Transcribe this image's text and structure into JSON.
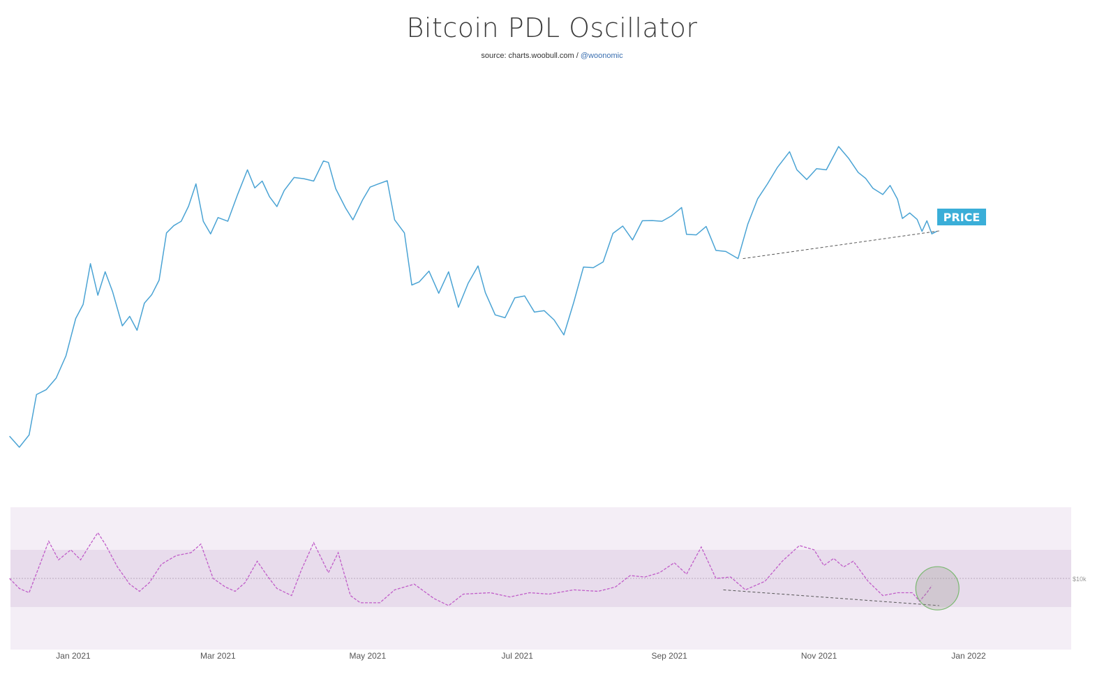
{
  "title": "Bitcoin PDL Oscillator",
  "subtitle": {
    "source": "source: charts.woobull.com / ",
    "handle": "@woonomic"
  },
  "colors": {
    "price": "#4aa3d4",
    "oscillator": "#c05cc8",
    "band_outer": "#f4eef6",
    "band_inner": "#e8dcec",
    "badge": "#3aaed8",
    "circle": "#7ab870"
  },
  "chart_data": {
    "type": "line",
    "price_badge": "PRICE",
    "right_axis_label": "$10k",
    "x_axis": {
      "ticks": [
        "Jan 2021",
        "Mar 2021",
        "May 2021",
        "Jul 2021",
        "Sep 2021",
        "Nov 2021",
        "Jan 2022"
      ],
      "range": [
        "2020-12-06",
        "2022-01-31"
      ]
    },
    "series": [
      {
        "key": "price",
        "points": [
          [
            "2020-12-06",
            19200
          ],
          [
            "2020-12-10",
            18300
          ],
          [
            "2020-12-14",
            19300
          ],
          [
            "2020-12-17",
            23000
          ],
          [
            "2020-12-21",
            23500
          ],
          [
            "2020-12-25",
            24700
          ],
          [
            "2020-12-29",
            27200
          ],
          [
            "2021-01-02",
            32000
          ],
          [
            "2021-01-05",
            34000
          ],
          [
            "2021-01-08",
            40600
          ],
          [
            "2021-01-11",
            35400
          ],
          [
            "2021-01-14",
            39200
          ],
          [
            "2021-01-17",
            36000
          ],
          [
            "2021-01-21",
            31000
          ],
          [
            "2021-01-24",
            32300
          ],
          [
            "2021-01-27",
            30400
          ],
          [
            "2021-01-30",
            34200
          ],
          [
            "2021-02-02",
            35500
          ],
          [
            "2021-02-05",
            37800
          ],
          [
            "2021-02-08",
            46400
          ],
          [
            "2021-02-11",
            47900
          ],
          [
            "2021-02-14",
            48800
          ],
          [
            "2021-02-17",
            52100
          ],
          [
            "2021-02-20",
            57400
          ],
          [
            "2021-02-23",
            48800
          ],
          [
            "2021-02-26",
            46200
          ],
          [
            "2021-03-01",
            49600
          ],
          [
            "2021-03-05",
            48800
          ],
          [
            "2021-03-09",
            54800
          ],
          [
            "2021-03-13",
            61000
          ],
          [
            "2021-03-16",
            56400
          ],
          [
            "2021-03-19",
            58100
          ],
          [
            "2021-03-22",
            54300
          ],
          [
            "2021-03-25",
            52000
          ],
          [
            "2021-03-28",
            55800
          ],
          [
            "2021-04-01",
            59000
          ],
          [
            "2021-04-05",
            58700
          ],
          [
            "2021-04-09",
            58100
          ],
          [
            "2021-04-13",
            63400
          ],
          [
            "2021-04-15",
            63000
          ],
          [
            "2021-04-18",
            56200
          ],
          [
            "2021-04-22",
            51700
          ],
          [
            "2021-04-25",
            49100
          ],
          [
            "2021-04-29",
            53600
          ],
          [
            "2021-05-02",
            56600
          ],
          [
            "2021-05-05",
            57300
          ],
          [
            "2021-05-09",
            58200
          ],
          [
            "2021-05-12",
            49100
          ],
          [
            "2021-05-16",
            46400
          ],
          [
            "2021-05-19",
            37000
          ],
          [
            "2021-05-22",
            37500
          ],
          [
            "2021-05-26",
            39300
          ],
          [
            "2021-05-30",
            35700
          ],
          [
            "2021-06-03",
            39200
          ],
          [
            "2021-06-07",
            33600
          ],
          [
            "2021-06-11",
            37300
          ],
          [
            "2021-06-15",
            40200
          ],
          [
            "2021-06-18",
            35800
          ],
          [
            "2021-06-22",
            32500
          ],
          [
            "2021-06-26",
            32100
          ],
          [
            "2021-06-30",
            35000
          ],
          [
            "2021-07-04",
            35300
          ],
          [
            "2021-07-08",
            32900
          ],
          [
            "2021-07-12",
            33100
          ],
          [
            "2021-07-16",
            31800
          ],
          [
            "2021-07-20",
            29800
          ],
          [
            "2021-07-24",
            34300
          ],
          [
            "2021-07-28",
            40000
          ],
          [
            "2021-08-01",
            39900
          ],
          [
            "2021-08-05",
            40900
          ],
          [
            "2021-08-09",
            46300
          ],
          [
            "2021-08-13",
            47800
          ],
          [
            "2021-08-17",
            45000
          ],
          [
            "2021-08-21",
            48900
          ],
          [
            "2021-08-25",
            48950
          ],
          [
            "2021-08-29",
            48800
          ],
          [
            "2021-09-02",
            50000
          ],
          [
            "2021-09-06",
            51800
          ],
          [
            "2021-09-08",
            46100
          ],
          [
            "2021-09-12",
            46000
          ],
          [
            "2021-09-16",
            47700
          ],
          [
            "2021-09-20",
            43000
          ],
          [
            "2021-09-24",
            42800
          ],
          [
            "2021-09-29",
            41500
          ],
          [
            "2021-10-03",
            48200
          ],
          [
            "2021-10-07",
            53800
          ],
          [
            "2021-10-11",
            57400
          ],
          [
            "2021-10-15",
            61600
          ],
          [
            "2021-10-20",
            66000
          ],
          [
            "2021-10-23",
            61000
          ],
          [
            "2021-10-27",
            58500
          ],
          [
            "2021-10-31",
            61300
          ],
          [
            "2021-11-04",
            61000
          ],
          [
            "2021-11-09",
            67500
          ],
          [
            "2021-11-13",
            64200
          ],
          [
            "2021-11-17",
            60300
          ],
          [
            "2021-11-20",
            58800
          ],
          [
            "2021-11-23",
            56300
          ],
          [
            "2021-11-27",
            54800
          ],
          [
            "2021-11-30",
            57000
          ],
          [
            "2021-12-03",
            53700
          ],
          [
            "2021-12-05",
            49400
          ],
          [
            "2021-12-08",
            50600
          ],
          [
            "2021-12-11",
            49200
          ],
          [
            "2021-12-13",
            46700
          ],
          [
            "2021-12-15",
            48900
          ],
          [
            "2021-12-17",
            46200
          ],
          [
            "2021-12-19",
            46700
          ]
        ]
      },
      {
        "key": "oscillator",
        "points": [
          [
            "2020-12-06",
            0.0
          ],
          [
            "2020-12-10",
            -0.35
          ],
          [
            "2020-12-14",
            -0.5
          ],
          [
            "2020-12-18",
            0.4
          ],
          [
            "2020-12-22",
            1.3
          ],
          [
            "2020-12-26",
            0.65
          ],
          [
            "2020-12-31",
            1.0
          ],
          [
            "2021-01-04",
            0.65
          ],
          [
            "2021-01-08",
            1.2
          ],
          [
            "2021-01-11",
            1.6
          ],
          [
            "2021-01-14",
            1.2
          ],
          [
            "2021-01-19",
            0.4
          ],
          [
            "2021-01-24",
            -0.2
          ],
          [
            "2021-01-28",
            -0.45
          ],
          [
            "2021-02-01",
            -0.15
          ],
          [
            "2021-02-06",
            0.5
          ],
          [
            "2021-02-12",
            0.8
          ],
          [
            "2021-02-18",
            0.9
          ],
          [
            "2021-02-22",
            1.2
          ],
          [
            "2021-02-27",
            0.0
          ],
          [
            "2021-03-04",
            -0.3
          ],
          [
            "2021-03-08",
            -0.45
          ],
          [
            "2021-03-12",
            -0.15
          ],
          [
            "2021-03-17",
            0.6
          ],
          [
            "2021-03-21",
            0.1
          ],
          [
            "2021-03-25",
            -0.35
          ],
          [
            "2021-03-31",
            -0.6
          ],
          [
            "2021-04-04",
            0.3
          ],
          [
            "2021-04-09",
            1.25
          ],
          [
            "2021-04-15",
            0.2
          ],
          [
            "2021-04-19",
            0.9
          ],
          [
            "2021-04-24",
            -0.6
          ],
          [
            "2021-04-28",
            -0.85
          ],
          [
            "2021-05-06",
            -0.85
          ],
          [
            "2021-05-12",
            -0.4
          ],
          [
            "2021-05-20",
            -0.2
          ],
          [
            "2021-05-28",
            -0.7
          ],
          [
            "2021-06-03",
            -0.95
          ],
          [
            "2021-06-09",
            -0.55
          ],
          [
            "2021-06-20",
            -0.5
          ],
          [
            "2021-06-28",
            -0.65
          ],
          [
            "2021-07-06",
            -0.5
          ],
          [
            "2021-07-14",
            -0.55
          ],
          [
            "2021-07-24",
            -0.4
          ],
          [
            "2021-08-03",
            -0.45
          ],
          [
            "2021-08-10",
            -0.3
          ],
          [
            "2021-08-16",
            0.1
          ],
          [
            "2021-08-22",
            0.05
          ],
          [
            "2021-08-28",
            0.2
          ],
          [
            "2021-09-03",
            0.55
          ],
          [
            "2021-09-08",
            0.15
          ],
          [
            "2021-09-14",
            1.1
          ],
          [
            "2021-09-20",
            0.0
          ],
          [
            "2021-09-26",
            0.05
          ],
          [
            "2021-10-02",
            -0.4
          ],
          [
            "2021-10-10",
            -0.1
          ],
          [
            "2021-10-17",
            0.6
          ],
          [
            "2021-10-24",
            1.15
          ],
          [
            "2021-10-30",
            1.0
          ],
          [
            "2021-11-03",
            0.45
          ],
          [
            "2021-11-07",
            0.7
          ],
          [
            "2021-11-11",
            0.4
          ],
          [
            "2021-11-15",
            0.6
          ],
          [
            "2021-11-21",
            -0.1
          ],
          [
            "2021-11-27",
            -0.6
          ],
          [
            "2021-12-03",
            -0.5
          ],
          [
            "2021-12-09",
            -0.5
          ],
          [
            "2021-12-12",
            -0.8
          ],
          [
            "2021-12-15",
            -0.5
          ],
          [
            "2021-12-17",
            -0.25
          ]
        ]
      }
    ],
    "trendlines": [
      {
        "panel": "price",
        "from": [
          "2021-10-01",
          41500
        ],
        "to": [
          "2021-12-20",
          46800
        ]
      },
      {
        "panel": "oscillator",
        "from": [
          "2021-09-23",
          -0.4
        ],
        "to": [
          "2021-12-20",
          -0.95
        ]
      }
    ],
    "highlight": {
      "center": [
        "2021-12-17",
        -0.2
      ]
    }
  }
}
